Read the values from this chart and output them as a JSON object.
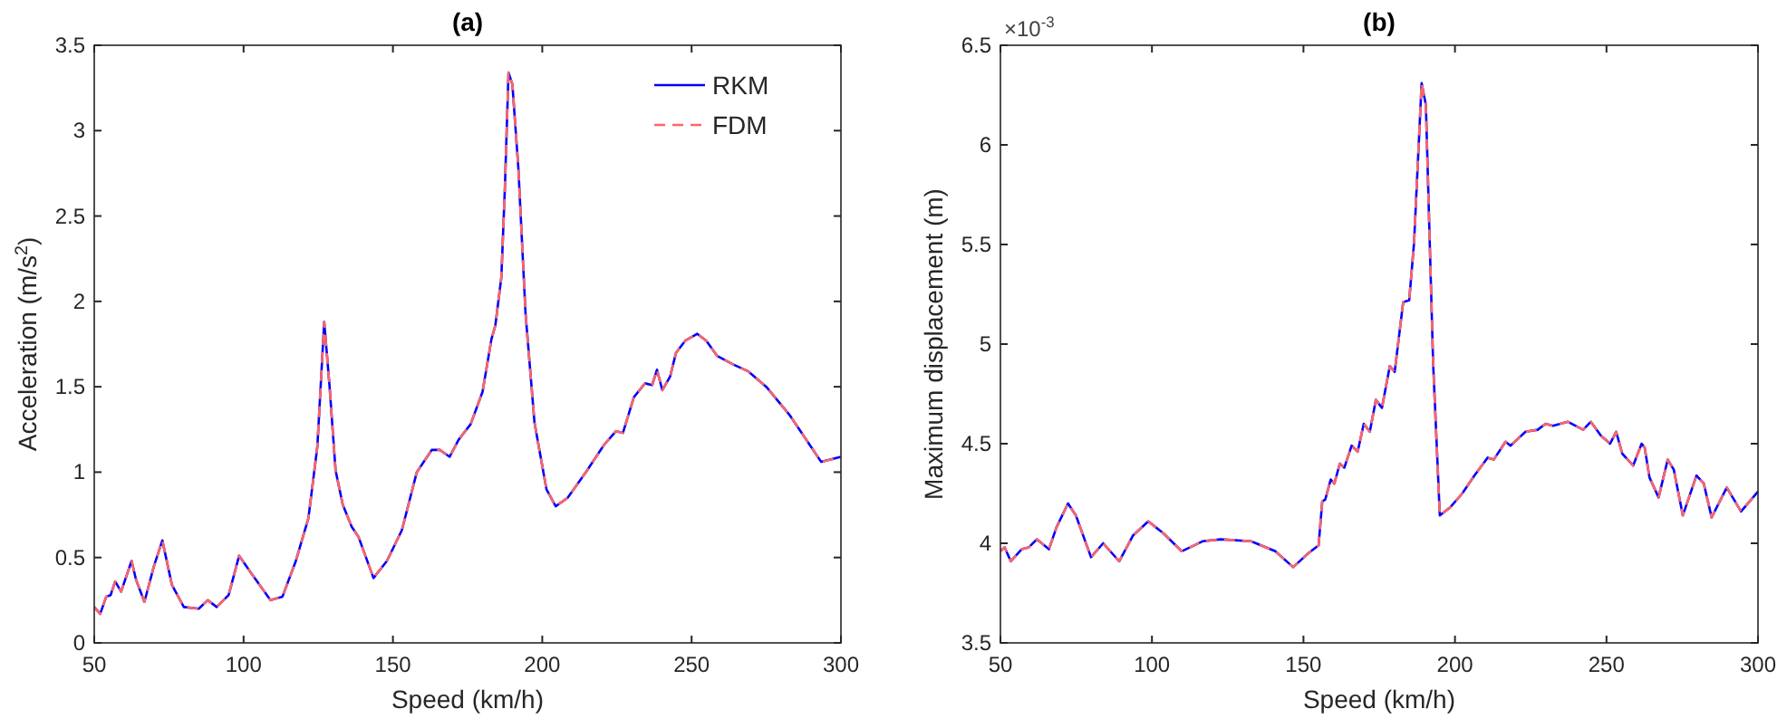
{
  "chart_data": [
    {
      "type": "line",
      "title": "(a)",
      "xlabel": "Speed (km/h)",
      "ylabel": "Acceleration (m/s$^{2}$)",
      "x": [
        50,
        52,
        54,
        55.5,
        57,
        59,
        62.5,
        64,
        66.8,
        70,
        72.8,
        76,
        80,
        85,
        88,
        91,
        95,
        98.5,
        102.5,
        104.5,
        109,
        113,
        117.5,
        121.7,
        124.7,
        127,
        128.8,
        130.8,
        133.2,
        136.2,
        138.5,
        143.5,
        148,
        153,
        158,
        163,
        165.7,
        169,
        172,
        176,
        180,
        183,
        184.3,
        186.3,
        187.5,
        188.7,
        190,
        192,
        194.4,
        197.4,
        201.4,
        204.5,
        208.5,
        214.6,
        220.7,
        224.7,
        227,
        230.7,
        234.4,
        236.8,
        238.4,
        240.2,
        242.8,
        244.8,
        247.9,
        251.9,
        254.9,
        258.6,
        264,
        269,
        275,
        283,
        293.4,
        300
      ],
      "series": [
        {
          "name": "RKM",
          "color": "#0000ff",
          "line_style": "solid",
          "values": [
            0.21,
            0.17,
            0.27,
            0.28,
            0.36,
            0.3,
            0.48,
            0.37,
            0.24,
            0.45,
            0.6,
            0.34,
            0.21,
            0.2,
            0.25,
            0.21,
            0.28,
            0.51,
            0.41,
            0.36,
            0.25,
            0.27,
            0.48,
            0.73,
            1.15,
            1.88,
            1.5,
            1.01,
            0.81,
            0.68,
            0.62,
            0.38,
            0.48,
            0.66,
            1.0,
            1.13,
            1.13,
            1.09,
            1.19,
            1.28,
            1.47,
            1.78,
            1.86,
            2.14,
            2.67,
            3.34,
            3.27,
            2.78,
            1.93,
            1.29,
            0.9,
            0.8,
            0.85,
            1.0,
            1.16,
            1.24,
            1.23,
            1.44,
            1.52,
            1.51,
            1.6,
            1.48,
            1.56,
            1.7,
            1.77,
            1.81,
            1.77,
            1.68,
            1.63,
            1.59,
            1.5,
            1.33,
            1.06,
            1.09
          ]
        },
        {
          "name": "FDM",
          "color": "#ff6666",
          "line_style": "dashed",
          "values": [
            0.21,
            0.17,
            0.27,
            0.28,
            0.36,
            0.3,
            0.48,
            0.37,
            0.24,
            0.45,
            0.6,
            0.34,
            0.21,
            0.2,
            0.25,
            0.21,
            0.28,
            0.51,
            0.41,
            0.36,
            0.25,
            0.27,
            0.48,
            0.73,
            1.15,
            1.88,
            1.5,
            1.01,
            0.81,
            0.68,
            0.62,
            0.38,
            0.48,
            0.66,
            1.0,
            1.13,
            1.13,
            1.09,
            1.19,
            1.28,
            1.47,
            1.78,
            1.86,
            2.14,
            2.67,
            3.34,
            3.27,
            2.78,
            1.93,
            1.29,
            0.9,
            0.8,
            0.85,
            1.0,
            1.16,
            1.24,
            1.23,
            1.44,
            1.52,
            1.51,
            1.6,
            1.48,
            1.56,
            1.7,
            1.77,
            1.81,
            1.77,
            1.68,
            1.63,
            1.59,
            1.5,
            1.33,
            1.06,
            1.09
          ]
        }
      ],
      "xlim": [
        50,
        300
      ],
      "xticks": [
        50,
        100,
        150,
        200,
        250,
        300
      ],
      "ylim": [
        0,
        3.5
      ],
      "yticks": [
        0,
        0.5,
        1,
        1.5,
        2,
        2.5,
        3,
        3.5
      ],
      "legend": "top right",
      "grid": false
    },
    {
      "type": "line",
      "title": "(b)",
      "xlabel": "Speed (km/h)",
      "ylabel": "Maximum displacement (m)",
      "annotations": [
        "×10$^{-3}$"
      ],
      "x": [
        50,
        51.4,
        53.4,
        57,
        59.4,
        62,
        66,
        68.5,
        72.3,
        74.9,
        79.9,
        83.9,
        89.2,
        93.8,
        98.8,
        103.8,
        109.8,
        116.7,
        122.7,
        132.7,
        140.7,
        146.6,
        151.6,
        155,
        156.2,
        157.2,
        159,
        160.2,
        162,
        163.5,
        165.9,
        167.9,
        169.9,
        171.9,
        173.9,
        175.9,
        178.5,
        180.1,
        182.9,
        184.9,
        186.5,
        189,
        190.4,
        192.8,
        195,
        198.4,
        202.4,
        206.4,
        210.8,
        212.8,
        216.7,
        218.3,
        223.3,
        227.3,
        229.9,
        232.3,
        237.3,
        242.3,
        244.8,
        248.2,
        251.2,
        253.2,
        255.2,
        258.8,
        261.6,
        262.6,
        264.2,
        267.2,
        270.2,
        272.2,
        275.2,
        279.7,
        282.1,
        284.7,
        289.7,
        294.4,
        300
      ],
      "series": [
        {
          "color": "#0000ff",
          "line_style": "solid",
          "values": [
            3.96,
            3.98,
            3.91,
            3.97,
            3.98,
            4.02,
            3.97,
            4.08,
            4.2,
            4.14,
            3.93,
            4.0,
            3.91,
            4.04,
            4.11,
            4.05,
            3.96,
            4.01,
            4.02,
            4.01,
            3.96,
            3.88,
            3.95,
            3.99,
            4.21,
            4.22,
            4.32,
            4.3,
            4.4,
            4.38,
            4.49,
            4.46,
            4.6,
            4.56,
            4.72,
            4.68,
            4.89,
            4.86,
            5.21,
            5.22,
            5.51,
            6.31,
            6.2,
            4.9,
            4.14,
            4.18,
            4.25,
            4.34,
            4.43,
            4.42,
            4.51,
            4.49,
            4.56,
            4.57,
            4.6,
            4.59,
            4.61,
            4.57,
            4.61,
            4.54,
            4.5,
            4.56,
            4.45,
            4.39,
            4.5,
            4.48,
            4.33,
            4.23,
            4.42,
            4.37,
            4.14,
            4.34,
            4.3,
            4.13,
            4.28,
            4.16,
            4.26
          ]
        },
        {
          "color": "#ff6666",
          "line_style": "dashed",
          "values": [
            3.96,
            3.98,
            3.91,
            3.97,
            3.98,
            4.02,
            3.97,
            4.08,
            4.2,
            4.14,
            3.93,
            4.0,
            3.91,
            4.04,
            4.11,
            4.05,
            3.96,
            4.01,
            4.02,
            4.01,
            3.96,
            3.88,
            3.95,
            3.99,
            4.21,
            4.22,
            4.32,
            4.3,
            4.4,
            4.38,
            4.49,
            4.46,
            4.6,
            4.56,
            4.72,
            4.68,
            4.89,
            4.86,
            5.21,
            5.22,
            5.51,
            6.31,
            6.2,
            4.9,
            4.14,
            4.18,
            4.25,
            4.34,
            4.43,
            4.42,
            4.51,
            4.49,
            4.56,
            4.57,
            4.6,
            4.59,
            4.61,
            4.57,
            4.61,
            4.54,
            4.5,
            4.56,
            4.45,
            4.39,
            4.5,
            4.48,
            4.33,
            4.23,
            4.42,
            4.37,
            4.14,
            4.34,
            4.3,
            4.13,
            4.28,
            4.16,
            4.26
          ]
        }
      ],
      "xlim": [
        50,
        300
      ],
      "xticks": [
        50,
        100,
        150,
        200,
        250,
        300
      ],
      "ylim": [
        3.5,
        6.5
      ],
      "yticks": [
        3.5,
        4,
        4.5,
        5,
        5.5,
        6,
        6.5
      ],
      "grid": false
    }
  ]
}
